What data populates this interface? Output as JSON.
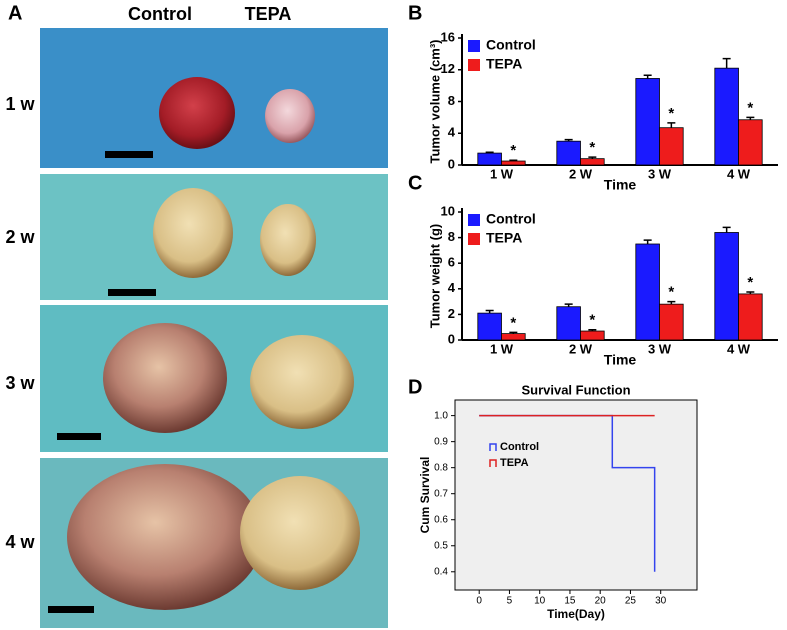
{
  "panel_a": {
    "label": "A",
    "columns": [
      "Control",
      "TEPA"
    ],
    "rows": [
      "1 w",
      "2 w",
      "3 w",
      "4 w"
    ]
  },
  "chart_data": [
    {
      "type": "bar",
      "panel": "B",
      "ylabel": "Tumor volume (cm³)",
      "xlabel": "Time",
      "categories": [
        "1 W",
        "2 W",
        "3 W",
        "4 W"
      ],
      "series": [
        {
          "name": "Control",
          "color": "#1a1aff",
          "values": [
            1.5,
            3.0,
            10.9,
            12.2
          ],
          "errors": [
            0.1,
            0.2,
            0.4,
            1.2
          ]
        },
        {
          "name": "TEPA",
          "color": "#ee1c1c",
          "values": [
            0.5,
            0.8,
            4.7,
            5.7
          ],
          "errors": [
            0.1,
            0.2,
            0.6,
            0.3
          ],
          "annotations": [
            "*",
            "*",
            "*",
            "*"
          ]
        }
      ],
      "ylim": [
        0,
        16
      ],
      "yticks": [
        0,
        4,
        8,
        12,
        16
      ],
      "legend": "upper left"
    },
    {
      "type": "bar",
      "panel": "C",
      "ylabel": "Tumor weight (g)",
      "xlabel": "Time",
      "categories": [
        "1 W",
        "2 W",
        "3 W",
        "4 W"
      ],
      "series": [
        {
          "name": "Control",
          "color": "#1a1aff",
          "values": [
            2.1,
            2.6,
            7.5,
            8.4
          ],
          "errors": [
            0.2,
            0.2,
            0.3,
            0.4
          ]
        },
        {
          "name": "TEPA",
          "color": "#ee1c1c",
          "values": [
            0.5,
            0.7,
            2.8,
            3.6
          ],
          "errors": [
            0.1,
            0.1,
            0.2,
            0.15
          ],
          "annotations": [
            "*",
            "*",
            "*",
            "*"
          ]
        }
      ],
      "ylim": [
        0,
        10
      ],
      "yticks": [
        0,
        2,
        4,
        6,
        8,
        10
      ],
      "legend": "upper left"
    },
    {
      "type": "step",
      "panel": "D",
      "title": "Survival Function",
      "xlabel": "Time(Day)",
      "ylabel": "Cum Survival",
      "series": [
        {
          "name": "Control",
          "color": "#3344ee",
          "x": [
            0,
            22,
            22,
            29,
            29
          ],
          "values": [
            1,
            1,
            0.8,
            0.8,
            0.4
          ]
        },
        {
          "name": "TEPA",
          "color": "#dd2222",
          "x": [
            0,
            29
          ],
          "values": [
            1,
            1
          ]
        }
      ],
      "xlim": [
        -4,
        36
      ],
      "xticks": [
        0,
        5,
        10,
        15,
        20,
        25,
        30
      ],
      "ylim": [
        0.33,
        1.06
      ],
      "yticks": [
        0.4,
        0.5,
        0.6,
        0.7,
        0.8,
        0.9,
        {
          "value": 1,
          "label": "1.0"
        }
      ],
      "legend": "upper left"
    }
  ]
}
